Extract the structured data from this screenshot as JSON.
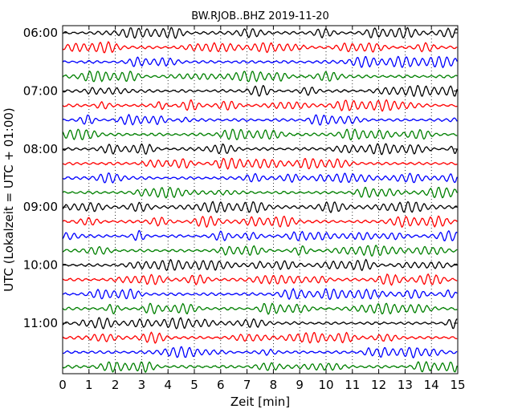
{
  "chart_data": {
    "type": "line",
    "title": "BW.RJOB..BHZ 2019-11-20",
    "xlabel": "Zeit  [min]",
    "ylabel": "UTC (Lokalzeit = UTC + 01:00)",
    "xlim": [
      0,
      15
    ],
    "x_ticks": [
      "0",
      "1",
      "2",
      "3",
      "4",
      "5",
      "6",
      "7",
      "8",
      "9",
      "10",
      "11",
      "12",
      "13",
      "14",
      "15"
    ],
    "y_tick_labels": [
      "06:00",
      "07:00",
      "08:00",
      "09:00",
      "10:00",
      "11:00"
    ],
    "grid": "vertical dotted",
    "trace_interval_minutes": 15,
    "series": [
      {
        "start": "06:00",
        "color": "#000000"
      },
      {
        "start": "06:15",
        "color": "#ff0000"
      },
      {
        "start": "06:30",
        "color": "#0000ff"
      },
      {
        "start": "06:45",
        "color": "#008000"
      },
      {
        "start": "07:00",
        "color": "#000000"
      },
      {
        "start": "07:15",
        "color": "#ff0000"
      },
      {
        "start": "07:30",
        "color": "#0000ff"
      },
      {
        "start": "07:45",
        "color": "#008000"
      },
      {
        "start": "08:00",
        "color": "#000000"
      },
      {
        "start": "08:15",
        "color": "#ff0000"
      },
      {
        "start": "08:30",
        "color": "#0000ff"
      },
      {
        "start": "08:45",
        "color": "#008000"
      },
      {
        "start": "09:00",
        "color": "#000000"
      },
      {
        "start": "09:15",
        "color": "#ff0000"
      },
      {
        "start": "09:30",
        "color": "#0000ff"
      },
      {
        "start": "09:45",
        "color": "#008000"
      },
      {
        "start": "10:00",
        "color": "#000000"
      },
      {
        "start": "10:15",
        "color": "#ff0000"
      },
      {
        "start": "10:30",
        "color": "#0000ff"
      },
      {
        "start": "10:45",
        "color": "#008000"
      },
      {
        "start": "11:00",
        "color": "#000000"
      },
      {
        "start": "11:15",
        "color": "#ff0000"
      },
      {
        "start": "11:30",
        "color": "#0000ff"
      },
      {
        "start": "11:45",
        "color": "#008000"
      }
    ]
  }
}
